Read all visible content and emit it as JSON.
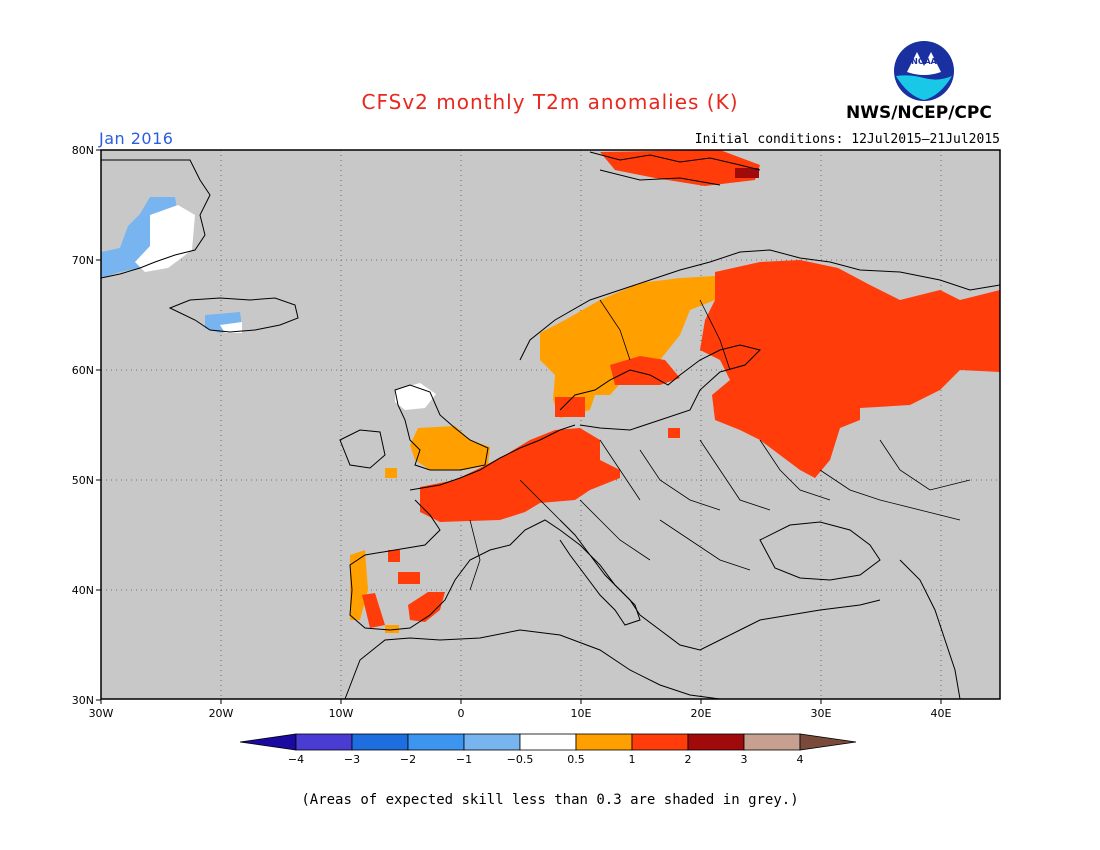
{
  "title": "CFSv2 monthly T2m anomalies (K)",
  "month": "Jan 2016",
  "agency": "NWS/NCEP/CPC",
  "logo_text": "NOAA",
  "initial_conditions": "Initial conditions: 12Jul2015–21Jul2015",
  "note": "(Areas of expected skill less than 0.3 are shaded in grey.)",
  "map": {
    "lat_labels": [
      "80N",
      "70N",
      "60N",
      "50N",
      "40N",
      "30N"
    ],
    "lon_labels": [
      "30W",
      "20W",
      "10W",
      "0",
      "10E",
      "20E",
      "30E",
      "40E"
    ],
    "background_color": "#c8c8c8"
  },
  "colorbar": {
    "colors": [
      "#1a0aa0",
      "#4a3cd2",
      "#1e6ee0",
      "#3c96f0",
      "#78b4f0",
      "#ffffff",
      "#ffa000",
      "#ff3c0a",
      "#a00a0a",
      "#c8a090",
      "#7a4a3a"
    ],
    "labels": [
      "−4",
      "−3",
      "−2",
      "−1",
      "−0.5",
      "0.5",
      "1",
      "2",
      "3",
      "4"
    ]
  },
  "palette": {
    "orange": "#ffa000",
    "red": "#ff3c0a",
    "darkred": "#a00a0a",
    "lightblue": "#78b4f0",
    "blue": "#3c96f0"
  }
}
